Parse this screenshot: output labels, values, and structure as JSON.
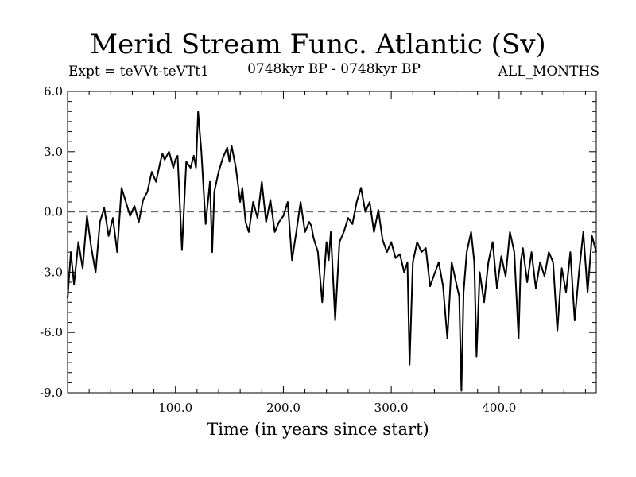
{
  "header": {
    "title": "Merid Stream Func. Atlantic (Sv)",
    "expt": "Expt = teVVt-teVTt1",
    "period": "0748kyr BP - 0748kyr BP",
    "months": "ALL_MONTHS"
  },
  "chart_data": {
    "type": "line",
    "title": "Merid Stream Func. Atlantic (Sv)",
    "xlabel": "Time (in years since start)",
    "ylabel": "",
    "xlim": [
      0,
      490
    ],
    "ylim": [
      -9.0,
      6.0
    ],
    "xticks": [
      100,
      200,
      300,
      400
    ],
    "xtick_labels": [
      "100.0",
      "200.0",
      "300.0",
      "400.0"
    ],
    "yticks": [
      6,
      3,
      0,
      -3,
      -6,
      -9
    ],
    "ytick_labels": [
      "6.0",
      "3.0",
      "0.0",
      "-3.0",
      "-6.0",
      "-9.0"
    ],
    "reference_line": {
      "y": 0,
      "style": "dashed"
    },
    "grid": false,
    "series": [
      {
        "x": [
          0,
          3,
          6,
          10,
          14,
          18,
          22,
          26,
          30,
          34,
          38,
          42,
          46,
          50,
          54,
          58,
          62,
          66,
          70,
          74,
          78,
          82,
          86,
          88,
          90,
          94,
          98,
          100,
          102,
          106,
          110,
          114,
          117,
          119,
          121,
          124,
          128,
          132,
          134,
          136,
          140,
          144,
          148,
          150,
          152,
          156,
          160,
          162,
          165,
          168,
          172,
          176,
          180,
          184,
          188,
          190,
          192,
          196,
          200,
          204,
          208,
          212,
          216,
          220,
          224,
          226,
          228,
          232,
          236,
          240,
          242,
          244,
          248,
          252,
          256,
          260,
          264,
          268,
          272,
          276,
          280,
          284,
          288,
          292,
          296,
          300,
          304,
          308,
          312,
          315,
          317,
          320,
          324,
          328,
          332,
          336,
          340,
          344,
          348,
          352,
          356,
          360,
          363,
          365,
          367,
          370,
          374,
          377,
          379,
          382,
          386,
          390,
          394,
          398,
          402,
          406,
          410,
          414,
          418,
          420,
          422,
          426,
          430,
          434,
          438,
          442,
          446,
          450,
          454,
          458,
          462,
          466,
          470,
          474,
          478,
          482,
          486,
          490
        ],
        "y": [
          -4.3,
          -2.0,
          -3.6,
          -1.5,
          -2.8,
          -0.2,
          -1.8,
          -3.0,
          -0.5,
          0.2,
          -1.2,
          -0.3,
          -2.0,
          1.2,
          0.5,
          -0.2,
          0.3,
          -0.5,
          0.6,
          1.0,
          2.0,
          1.5,
          2.5,
          2.9,
          2.6,
          3.0,
          2.2,
          2.6,
          2.8,
          -1.9,
          2.5,
          2.2,
          2.8,
          2.2,
          5.0,
          3.0,
          -0.6,
          1.5,
          -2.0,
          1.0,
          2.0,
          2.7,
          3.2,
          2.5,
          3.3,
          2.2,
          0.5,
          1.2,
          -0.5,
          -1.0,
          0.5,
          -0.3,
          1.5,
          -0.5,
          0.6,
          -0.2,
          -1.0,
          -0.5,
          -0.2,
          0.5,
          -2.4,
          -1.0,
          0.5,
          -1.0,
          -0.5,
          -0.7,
          -1.3,
          -2.0,
          -4.5,
          -1.5,
          -2.4,
          -1.0,
          -5.4,
          -1.5,
          -1.0,
          -0.3,
          -0.6,
          0.5,
          1.2,
          0.0,
          0.5,
          -1.0,
          0.1,
          -1.4,
          -2.0,
          -1.5,
          -2.3,
          -2.1,
          -3.0,
          -2.5,
          -7.6,
          -2.5,
          -1.5,
          -2.0,
          -1.8,
          -3.7,
          -3.1,
          -2.5,
          -3.7,
          -6.3,
          -2.5,
          -3.5,
          -4.2,
          -8.9,
          -4.0,
          -2.0,
          -1.0,
          -2.5,
          -7.2,
          -3.0,
          -4.5,
          -2.5,
          -1.5,
          -3.8,
          -2.2,
          -3.2,
          -1.0,
          -2.0,
          -6.3,
          -2.5,
          -1.8,
          -3.5,
          -2.0,
          -3.8,
          -2.5,
          -3.2,
          -2.0,
          -2.5,
          -5.9,
          -2.8,
          -4.0,
          -2.0,
          -5.4,
          -3.0,
          -1.0,
          -4.0,
          -1.2,
          -2.0
        ]
      }
    ]
  }
}
